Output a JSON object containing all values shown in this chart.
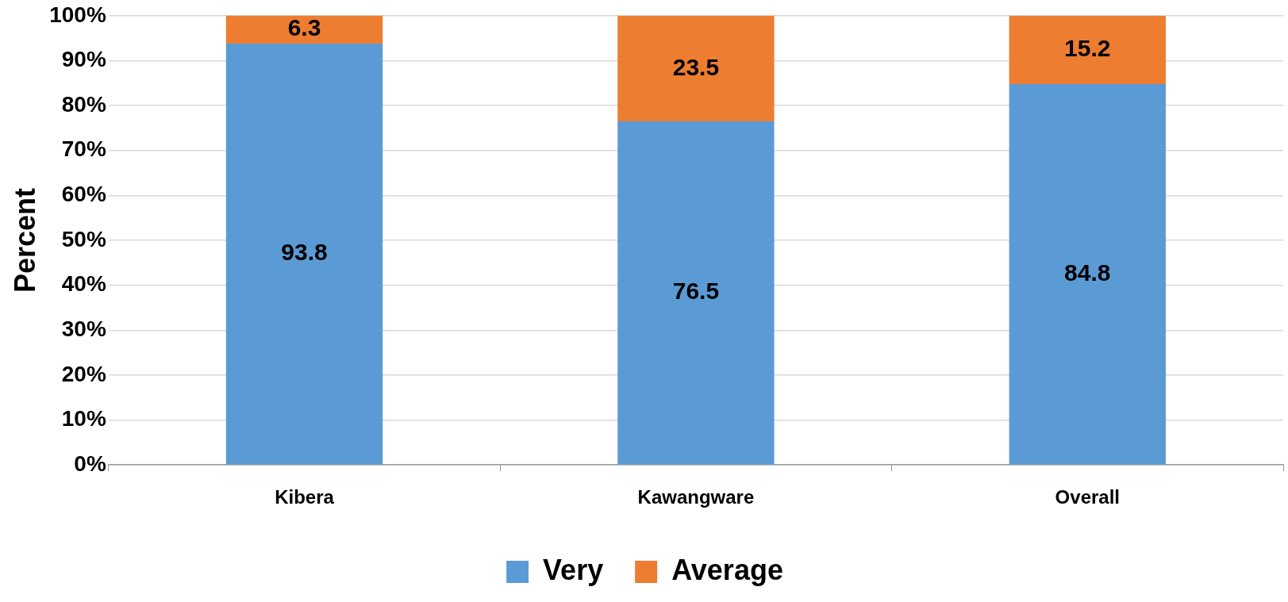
{
  "chart_data": {
    "type": "bar",
    "stacked": true,
    "ylabel": "Percent",
    "categories": [
      "Kibera",
      "Kawangware",
      "Overall"
    ],
    "series": [
      {
        "name": "Very",
        "color": "#5b9bd5",
        "values": [
          93.8,
          76.5,
          84.8
        ]
      },
      {
        "name": "Average",
        "color": "#ed7d31",
        "values": [
          6.3,
          23.5,
          15.2
        ]
      }
    ],
    "ylim": [
      0,
      100
    ],
    "yticks": [
      {
        "value": 0,
        "label": "0%"
      },
      {
        "value": 10,
        "label": "10%"
      },
      {
        "value": 20,
        "label": "20%"
      },
      {
        "value": 30,
        "label": "30%"
      },
      {
        "value": 40,
        "label": "40%"
      },
      {
        "value": 50,
        "label": "50%"
      },
      {
        "value": 60,
        "label": "60%"
      },
      {
        "value": 70,
        "label": "70%"
      },
      {
        "value": 80,
        "label": "80%"
      },
      {
        "value": 90,
        "label": "90%"
      },
      {
        "value": 100,
        "label": "100%"
      }
    ],
    "grid": "y",
    "legend": "bottom",
    "data_labels": true
  }
}
